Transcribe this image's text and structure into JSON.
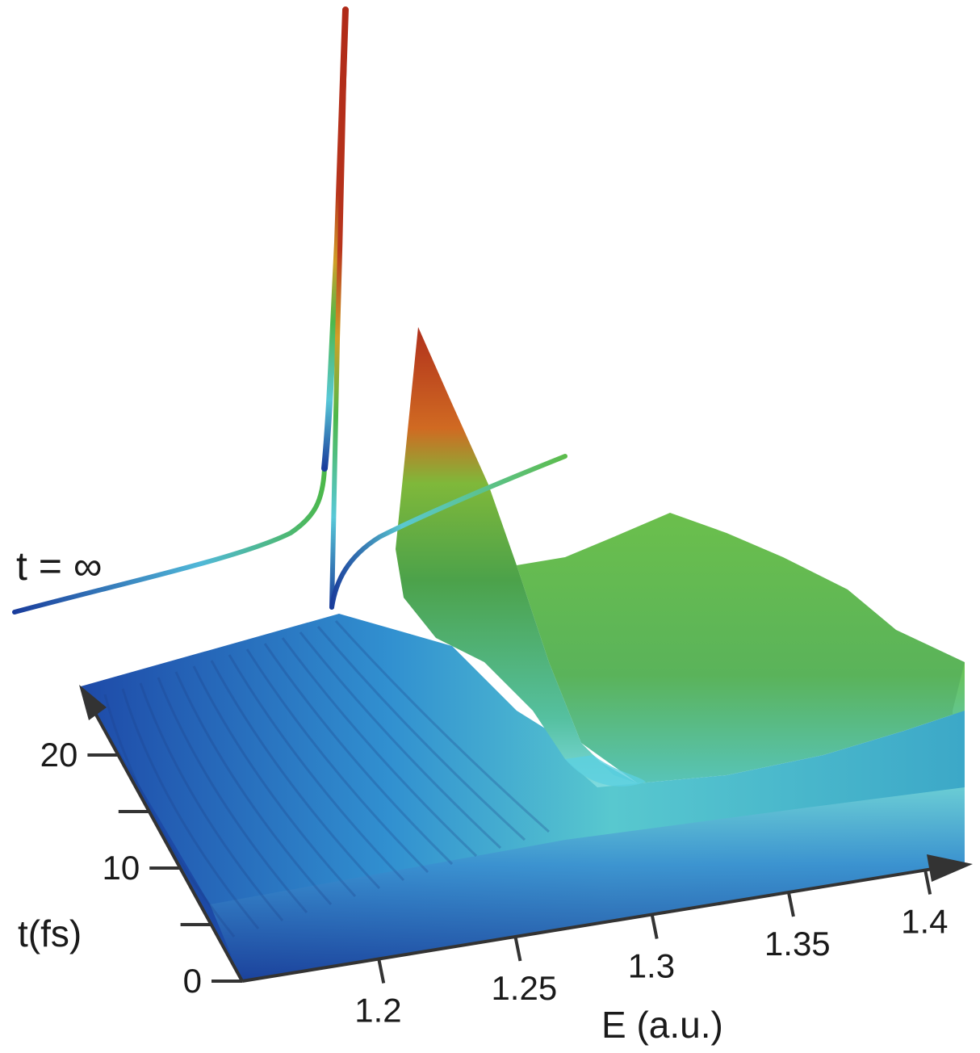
{
  "chart_data": {
    "type": "surface",
    "x_axis": {
      "label": "E (a.u.)",
      "range": [
        1.15,
        1.41
      ],
      "ticks": [
        {
          "value": 1.2,
          "label": "1.2"
        },
        {
          "value": 1.25,
          "label": "1.25"
        },
        {
          "value": 1.3,
          "label": "1.3"
        },
        {
          "value": 1.35,
          "label": "1.35"
        },
        {
          "value": 1.4,
          "label": "1.4"
        }
      ]
    },
    "y_axis": {
      "label": "t(fs)",
      "range": [
        0,
        25
      ],
      "ticks": [
        {
          "value": 0,
          "label": "0"
        },
        {
          "value": 5,
          "label": ""
        },
        {
          "value": 10,
          "label": "10"
        },
        {
          "value": 15,
          "label": ""
        },
        {
          "value": 20,
          "label": "20"
        }
      ]
    },
    "limit_curve": {
      "label": "t = ∞",
      "peak_energy": 1.186,
      "dip_energy": 1.19
    },
    "surface": {
      "transient_peak_energy": 1.222,
      "dip_energy": 1.29,
      "colormap": [
        "#1b3f9c",
        "#2f7fc8",
        "#6fd0d6",
        "#55b04c",
        "#e0b030",
        "#b0301c"
      ]
    }
  }
}
